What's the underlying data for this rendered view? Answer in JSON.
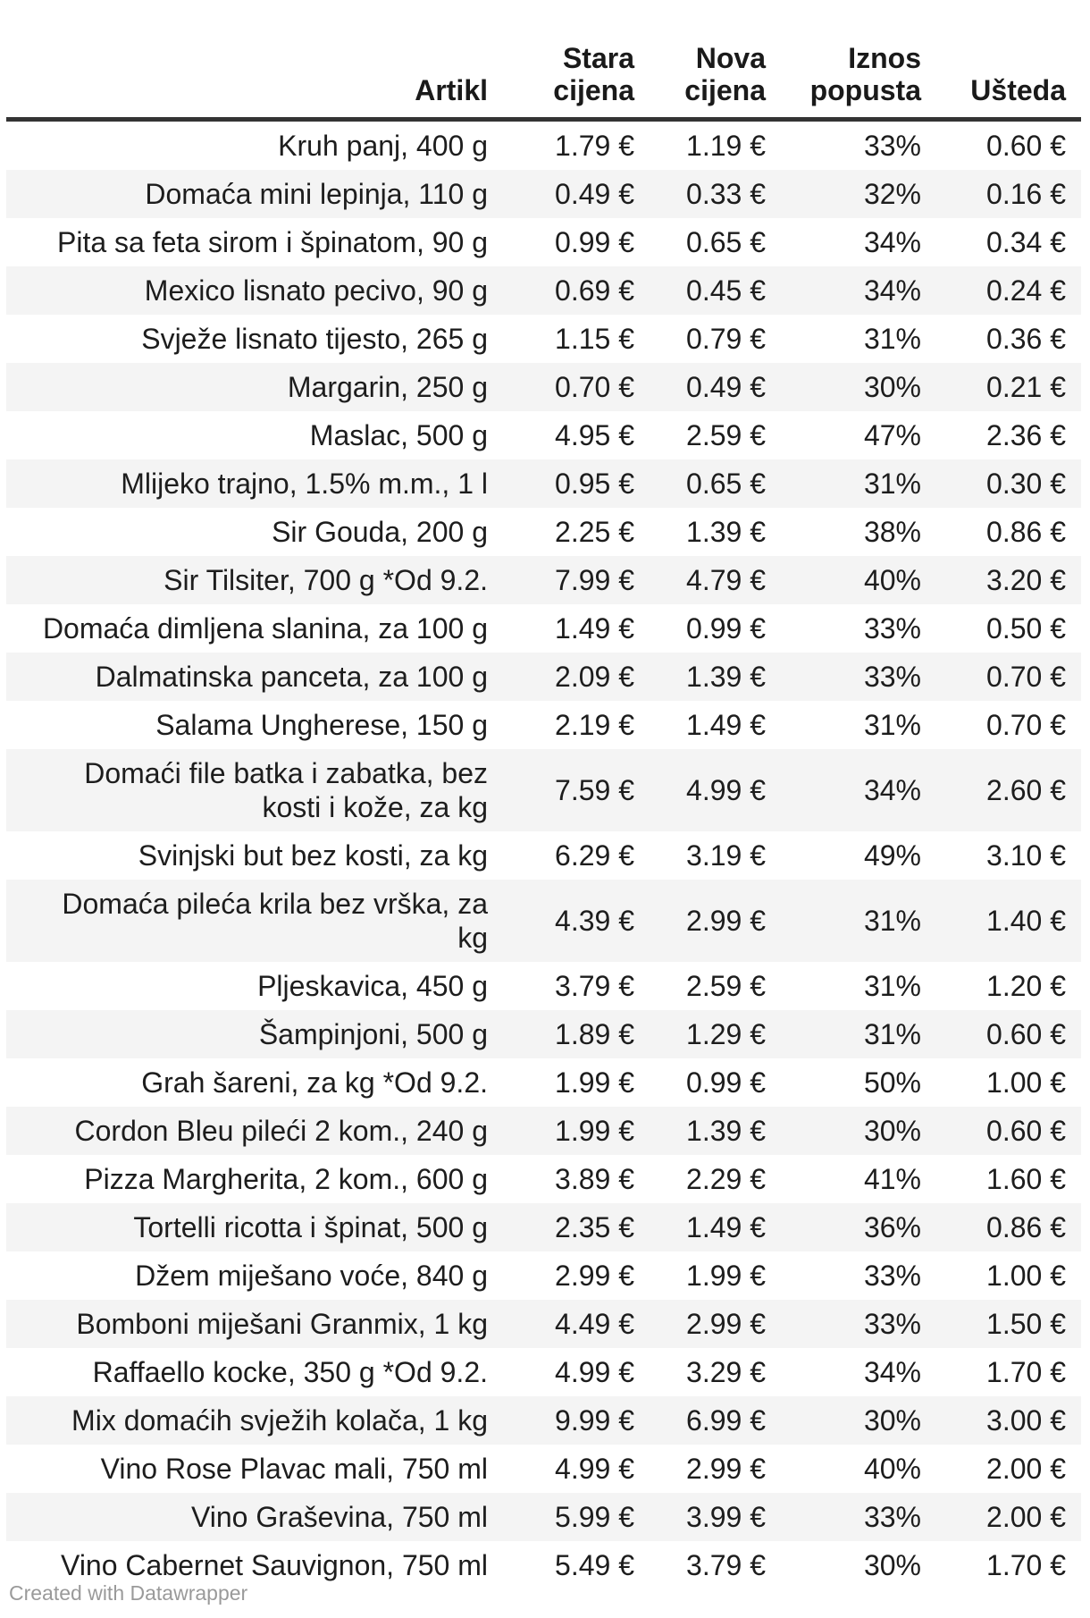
{
  "table": {
    "columns": [
      {
        "key": "artikl",
        "label": "Artikl",
        "align": "left"
      },
      {
        "key": "stara",
        "label": "Stara\ncijena",
        "align": "right"
      },
      {
        "key": "nova",
        "label": "Nova\ncijena",
        "align": "right"
      },
      {
        "key": "iznos",
        "label": "Iznos\npopusta",
        "align": "right"
      },
      {
        "key": "usteda",
        "label": "Ušteda",
        "align": "right"
      }
    ],
    "rows": [
      {
        "artikl": "Kruh panj, 400 g",
        "stara": "1.79 €",
        "nova": "1.19 €",
        "iznos": "33%",
        "usteda": "0.60 €"
      },
      {
        "artikl": "Domaća mini lepinja, 110 g",
        "stara": "0.49 €",
        "nova": "0.33 €",
        "iznos": "32%",
        "usteda": "0.16 €"
      },
      {
        "artikl": "Pita sa feta sirom i špinatom, 90 g",
        "stara": "0.99 €",
        "nova": "0.65 €",
        "iznos": "34%",
        "usteda": "0.34 €"
      },
      {
        "artikl": "Mexico lisnato pecivo, 90 g",
        "stara": "0.69 €",
        "nova": "0.45 €",
        "iznos": "34%",
        "usteda": "0.24 €"
      },
      {
        "artikl": "Svježe lisnato tijesto, 265 g",
        "stara": "1.15 €",
        "nova": "0.79 €",
        "iznos": "31%",
        "usteda": "0.36 €"
      },
      {
        "artikl": "Margarin, 250 g",
        "stara": "0.70 €",
        "nova": "0.49 €",
        "iznos": "30%",
        "usteda": "0.21 €"
      },
      {
        "artikl": "Maslac, 500 g",
        "stara": "4.95 €",
        "nova": "2.59 €",
        "iznos": "47%",
        "usteda": "2.36 €"
      },
      {
        "artikl": "Mlijeko trajno, 1.5% m.m., 1 l",
        "stara": "0.95 €",
        "nova": "0.65 €",
        "iznos": "31%",
        "usteda": "0.30 €"
      },
      {
        "artikl": "Sir Gouda, 200 g",
        "stara": "2.25 €",
        "nova": "1.39 €",
        "iznos": "38%",
        "usteda": "0.86 €"
      },
      {
        "artikl": "Sir Tilsiter, 700 g *Od 9.2.",
        "stara": "7.99 €",
        "nova": "4.79 €",
        "iznos": "40%",
        "usteda": "3.20 €"
      },
      {
        "artikl": "Domaća dimljena slanina, za 100 g",
        "stara": "1.49 €",
        "nova": "0.99 €",
        "iznos": "33%",
        "usteda": "0.50 €"
      },
      {
        "artikl": "Dalmatinska panceta, za 100 g",
        "stara": "2.09 €",
        "nova": "1.39 €",
        "iznos": "33%",
        "usteda": "0.70 €"
      },
      {
        "artikl": "Salama Ungherese, 150 g",
        "stara": "2.19 €",
        "nova": "1.49 €",
        "iznos": "31%",
        "usteda": "0.70 €"
      },
      {
        "artikl": "Domaći file batka i zabatka, bez kosti i\nkože, za kg",
        "stara": "7.59 €",
        "nova": "4.99 €",
        "iznos": "34%",
        "usteda": "2.60 €"
      },
      {
        "artikl": "Svinjski but bez kosti, za kg",
        "stara": "6.29 €",
        "nova": "3.19 €",
        "iznos": "49%",
        "usteda": "3.10 €"
      },
      {
        "artikl": "Domaća pileća krila bez vrška, za kg",
        "stara": "4.39 €",
        "nova": "2.99 €",
        "iznos": "31%",
        "usteda": "1.40 €"
      },
      {
        "artikl": "Pljeskavica, 450 g",
        "stara": "3.79 €",
        "nova": "2.59 €",
        "iznos": "31%",
        "usteda": "1.20 €"
      },
      {
        "artikl": "Šampinjoni, 500 g",
        "stara": "1.89 €",
        "nova": "1.29 €",
        "iznos": "31%",
        "usteda": "0.60 €"
      },
      {
        "artikl": "Grah šareni, za kg *Od 9.2.",
        "stara": "1.99 €",
        "nova": "0.99 €",
        "iznos": "50%",
        "usteda": "1.00 €"
      },
      {
        "artikl": "Cordon Bleu pileći 2 kom., 240 g",
        "stara": "1.99 €",
        "nova": "1.39 €",
        "iznos": "30%",
        "usteda": "0.60 €"
      },
      {
        "artikl": "Pizza Margherita, 2 kom., 600 g",
        "stara": "3.89 €",
        "nova": "2.29 €",
        "iznos": "41%",
        "usteda": "1.60 €"
      },
      {
        "artikl": "Tortelli ricotta i špinat, 500 g",
        "stara": "2.35 €",
        "nova": "1.49 €",
        "iznos": "36%",
        "usteda": "0.86 €"
      },
      {
        "artikl": "Džem miješano voće, 840 g",
        "stara": "2.99 €",
        "nova": "1.99 €",
        "iznos": "33%",
        "usteda": "1.00 €"
      },
      {
        "artikl": "Bomboni miješani Granmix, 1 kg",
        "stara": "4.49 €",
        "nova": "2.99 €",
        "iznos": "33%",
        "usteda": "1.50 €"
      },
      {
        "artikl": "Raffaello kocke, 350 g *Od 9.2.",
        "stara": "4.99 €",
        "nova": "3.29 €",
        "iznos": "34%",
        "usteda": "1.70 €"
      },
      {
        "artikl": "Mix domaćih svježih kolača, 1 kg",
        "stara": "9.99 €",
        "nova": "6.99 €",
        "iznos": "30%",
        "usteda": "3.00 €"
      },
      {
        "artikl": "Vino Rose Plavac mali, 750 ml",
        "stara": "4.99 €",
        "nova": "2.99 €",
        "iznos": "40%",
        "usteda": "2.00 €"
      },
      {
        "artikl": "Vino Graševina, 750 ml",
        "stara": "5.99 €",
        "nova": "3.99 €",
        "iznos": "33%",
        "usteda": "2.00 €"
      },
      {
        "artikl": "Vino Cabernet Sauvignon, 750 ml",
        "stara": "5.49 €",
        "nova": "3.79 €",
        "iznos": "30%",
        "usteda": "1.70 €"
      }
    ]
  },
  "footer": {
    "credit": "Created with Datawrapper"
  },
  "colors": {
    "row_stripe": "#f4f4f4",
    "header_border": "#333333",
    "text": "#1d1d1d",
    "footer_text": "#9a9a9a"
  },
  "chart_data": {
    "type": "table",
    "title": "",
    "columns": [
      "Artikl",
      "Stara cijena",
      "Nova cijena",
      "Iznos popusta",
      "Ušteda"
    ],
    "rows": [
      [
        "Kruh panj, 400 g",
        1.79,
        1.19,
        "33%",
        0.6
      ],
      [
        "Domaća mini lepinja, 110 g",
        0.49,
        0.33,
        "32%",
        0.16
      ],
      [
        "Pita sa feta sirom i špinatom, 90 g",
        0.99,
        0.65,
        "34%",
        0.34
      ],
      [
        "Mexico lisnato pecivo, 90 g",
        0.69,
        0.45,
        "34%",
        0.24
      ],
      [
        "Svježe lisnato tijesto, 265 g",
        1.15,
        0.79,
        "31%",
        0.36
      ],
      [
        "Margarin, 250 g",
        0.7,
        0.49,
        "30%",
        0.21
      ],
      [
        "Maslac, 500 g",
        4.95,
        2.59,
        "47%",
        2.36
      ],
      [
        "Mlijeko trajno, 1.5% m.m., 1 l",
        0.95,
        0.65,
        "31%",
        0.3
      ],
      [
        "Sir Gouda, 200 g",
        2.25,
        1.39,
        "38%",
        0.86
      ],
      [
        "Sir Tilsiter, 700 g *Od 9.2.",
        7.99,
        4.79,
        "40%",
        3.2
      ],
      [
        "Domaća dimljena slanina, za 100 g",
        1.49,
        0.99,
        "33%",
        0.5
      ],
      [
        "Dalmatinska panceta, za 100 g",
        2.09,
        1.39,
        "33%",
        0.7
      ],
      [
        "Salama Ungherese, 150 g",
        2.19,
        1.49,
        "31%",
        0.7
      ],
      [
        "Domaći file batka i zabatka, bez kosti i kože, za kg",
        7.59,
        4.99,
        "34%",
        2.6
      ],
      [
        "Svinjski but bez kosti, za kg",
        6.29,
        3.19,
        "49%",
        3.1
      ],
      [
        "Domaća pileća krila bez vrška, za kg",
        4.39,
        2.99,
        "31%",
        1.4
      ],
      [
        "Pljeskavica, 450 g",
        3.79,
        2.59,
        "31%",
        1.2
      ],
      [
        "Šampinjoni, 500 g",
        1.89,
        1.29,
        "31%",
        0.6
      ],
      [
        "Grah šareni, za kg *Od 9.2.",
        1.99,
        0.99,
        "50%",
        1.0
      ],
      [
        "Cordon Bleu pileći 2 kom., 240 g",
        1.99,
        1.39,
        "30%",
        0.6
      ],
      [
        "Pizza Margherita, 2 kom., 600 g",
        3.89,
        2.29,
        "41%",
        1.6
      ],
      [
        "Tortelli ricotta i špinat, 500 g",
        2.35,
        1.49,
        "36%",
        0.86
      ],
      [
        "Džem miješano voće, 840 g",
        2.99,
        1.99,
        "33%",
        1.0
      ],
      [
        "Bomboni miješani Granmix, 1 kg",
        4.49,
        2.99,
        "33%",
        1.5
      ],
      [
        "Raffaello kocke, 350 g *Od 9.2.",
        4.99,
        3.29,
        "34%",
        1.7
      ],
      [
        "Mix domaćih svježih kolača, 1 kg",
        9.99,
        6.99,
        "30%",
        3.0
      ],
      [
        "Vino Rose Plavac mali, 750 ml",
        4.99,
        2.99,
        "40%",
        2.0
      ],
      [
        "Vino Graševina, 750 ml",
        5.99,
        3.99,
        "33%",
        2.0
      ],
      [
        "Vino Cabernet Sauvignon, 750 ml",
        5.49,
        3.79,
        "30%",
        1.7
      ]
    ]
  }
}
